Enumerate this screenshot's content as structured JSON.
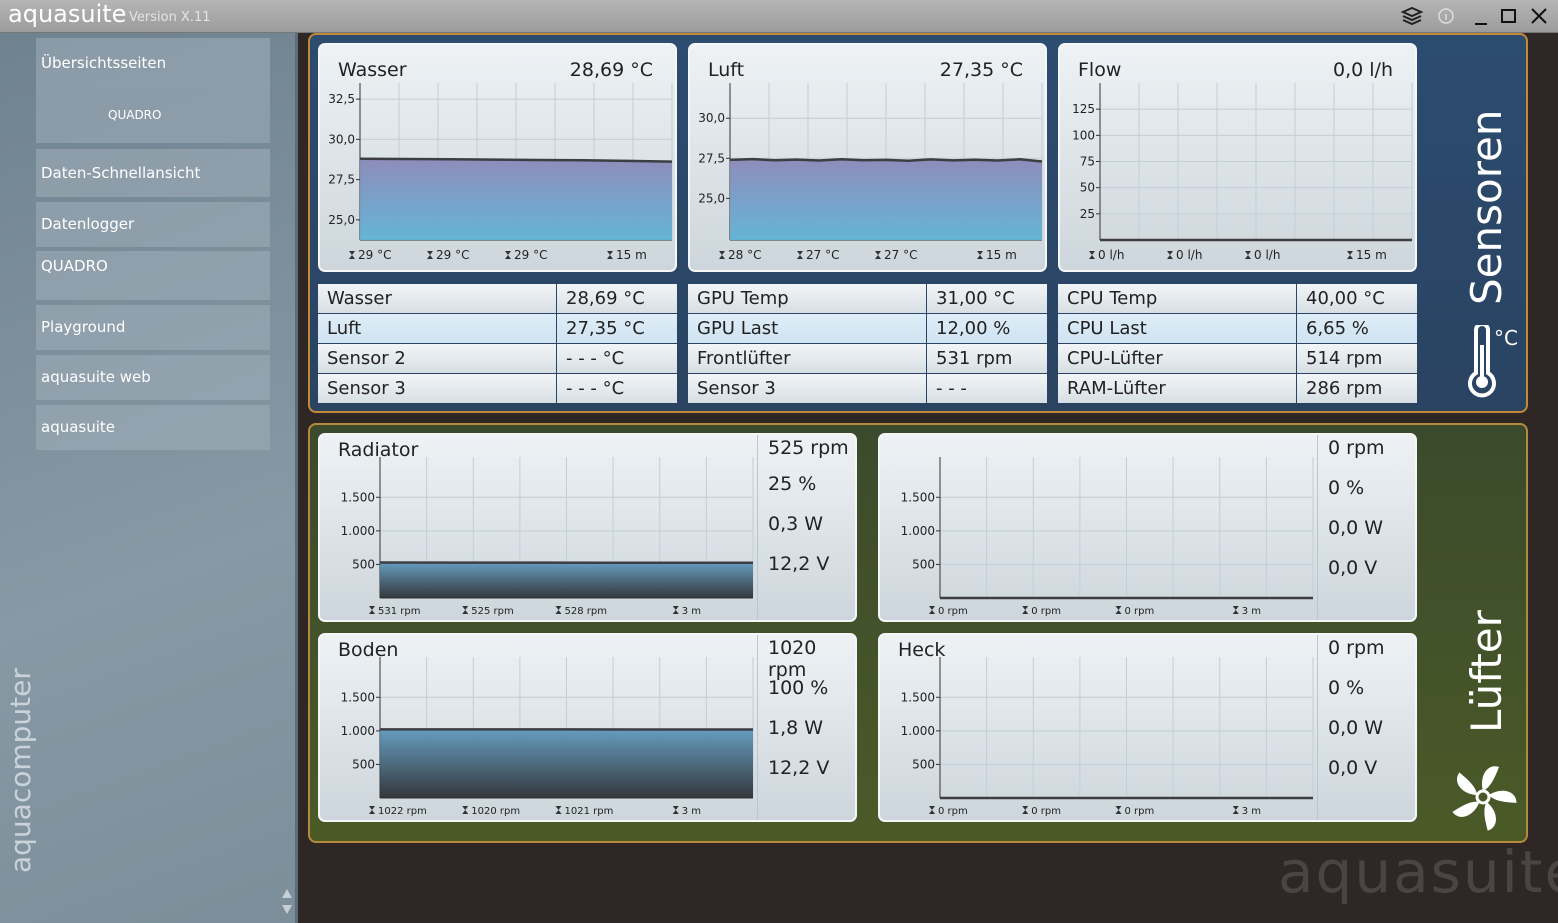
{
  "app": {
    "name": "aquasuite",
    "version": "Version X.11"
  },
  "sidebar": {
    "overview": "Übersichtsseiten",
    "tile": "QUADRO",
    "items": [
      "Daten-Schnellansicht",
      "Datenlogger",
      "QUADRO",
      "Playground",
      "aquasuite web",
      "aquasuite"
    ],
    "brand": "aquacomputer"
  },
  "sensors": {
    "title": "Sensoren",
    "unit": "°C",
    "charts": [
      {
        "type": "area",
        "title": "Wasser",
        "reading": "28,69 °C",
        "ylim": [
          23.75,
          33.5
        ],
        "yticks": [
          {
            "value": 32.5,
            "label": "32,5"
          },
          {
            "value": 30,
            "label": "30,0"
          },
          {
            "value": 27.5,
            "label": "27,5"
          },
          {
            "value": 25,
            "label": "25,0"
          }
        ],
        "values": [
          28.8,
          28.78,
          28.76,
          28.74,
          28.72,
          28.7,
          28.66,
          28.62
        ],
        "stats": [
          "29 °C",
          "29 °C",
          "29 °C",
          "15 m"
        ]
      },
      {
        "type": "area",
        "title": "Luft",
        "reading": "27,35 °C",
        "ylim": [
          22.4,
          32.2
        ],
        "yticks": [
          {
            "value": 30,
            "label": "30,0"
          },
          {
            "value": 27.5,
            "label": "27,5"
          },
          {
            "value": 25,
            "label": "25,0"
          }
        ],
        "values": [
          27.4,
          27.45,
          27.38,
          27.42,
          27.36,
          27.44,
          27.38,
          27.4,
          27.35,
          27.43,
          27.37,
          27.41,
          27.36,
          27.44,
          27.3
        ],
        "stats": [
          "28 °C",
          "27 °C",
          "27 °C",
          "15 m"
        ]
      },
      {
        "type": "area",
        "title": "Flow",
        "reading": "0,0 l/h",
        "ylim": [
          0,
          150
        ],
        "yticks": [
          125,
          100,
          75,
          50,
          25
        ],
        "values": [
          0,
          0,
          0,
          0
        ],
        "stats": [
          "0 l/h",
          "0 l/h",
          "0 l/h",
          "15 m"
        ]
      }
    ],
    "tables": [
      [
        [
          "Wasser",
          "28,69 °C"
        ],
        [
          "Luft",
          "27,35 °C"
        ],
        [
          "Sensor 2",
          "- - - °C"
        ],
        [
          "Sensor 3",
          "- - - °C"
        ]
      ],
      [
        [
          "GPU Temp",
          "31,00 °C"
        ],
        [
          "GPU Last",
          "12,00 %"
        ],
        [
          "Frontlüfter",
          "531 rpm"
        ],
        [
          "Sensor 3",
          "- - -"
        ]
      ],
      [
        [
          "CPU Temp",
          "40,00 °C"
        ],
        [
          "CPU Last",
          "6,65 %"
        ],
        [
          "CPU-Lüfter",
          "514 rpm"
        ],
        [
          "RAM-Lüfter",
          "286 rpm"
        ]
      ]
    ]
  },
  "fans": {
    "title": "Lüfter",
    "ylim": [
      0,
      2100
    ],
    "yticks": [
      {
        "value": 1500,
        "label": "1.500"
      },
      {
        "value": 1000,
        "label": "1.000"
      },
      500
    ],
    "panels": [
      {
        "type": "area",
        "title": "Radiator",
        "readings": [
          "525 rpm",
          "25 %",
          "0,3 W",
          "12,2 V"
        ],
        "values": [
          528,
          527,
          527,
          526,
          525,
          525
        ],
        "stats": [
          "531 rpm",
          "525 rpm",
          "528 rpm",
          "3 m"
        ]
      },
      {
        "type": "area",
        "readings": [
          "0 rpm",
          "0 %",
          "0,0 W",
          "0,0 V"
        ],
        "values": [
          0,
          0,
          0
        ],
        "stats": [
          "0 rpm",
          "0 rpm",
          "0 rpm",
          "3 m"
        ]
      },
      {
        "type": "area",
        "title": "Boden",
        "readings": [
          "1020 rpm",
          "100 %",
          "1,8 W",
          "12,2 V"
        ],
        "values": [
          1022,
          1021,
          1021,
          1020,
          1020
        ],
        "stats": [
          "1022 rpm",
          "1020 rpm",
          "1021 rpm",
          "3 m"
        ]
      },
      {
        "type": "area",
        "title": "Heck",
        "readings": [
          "0 rpm",
          "0 %",
          "0,0 W",
          "0,0 V"
        ],
        "values": [
          0,
          0,
          0
        ],
        "stats": [
          "0 rpm",
          "0 rpm",
          "0 rpm",
          "3 m"
        ]
      }
    ]
  },
  "watermark": "aquasuite"
}
